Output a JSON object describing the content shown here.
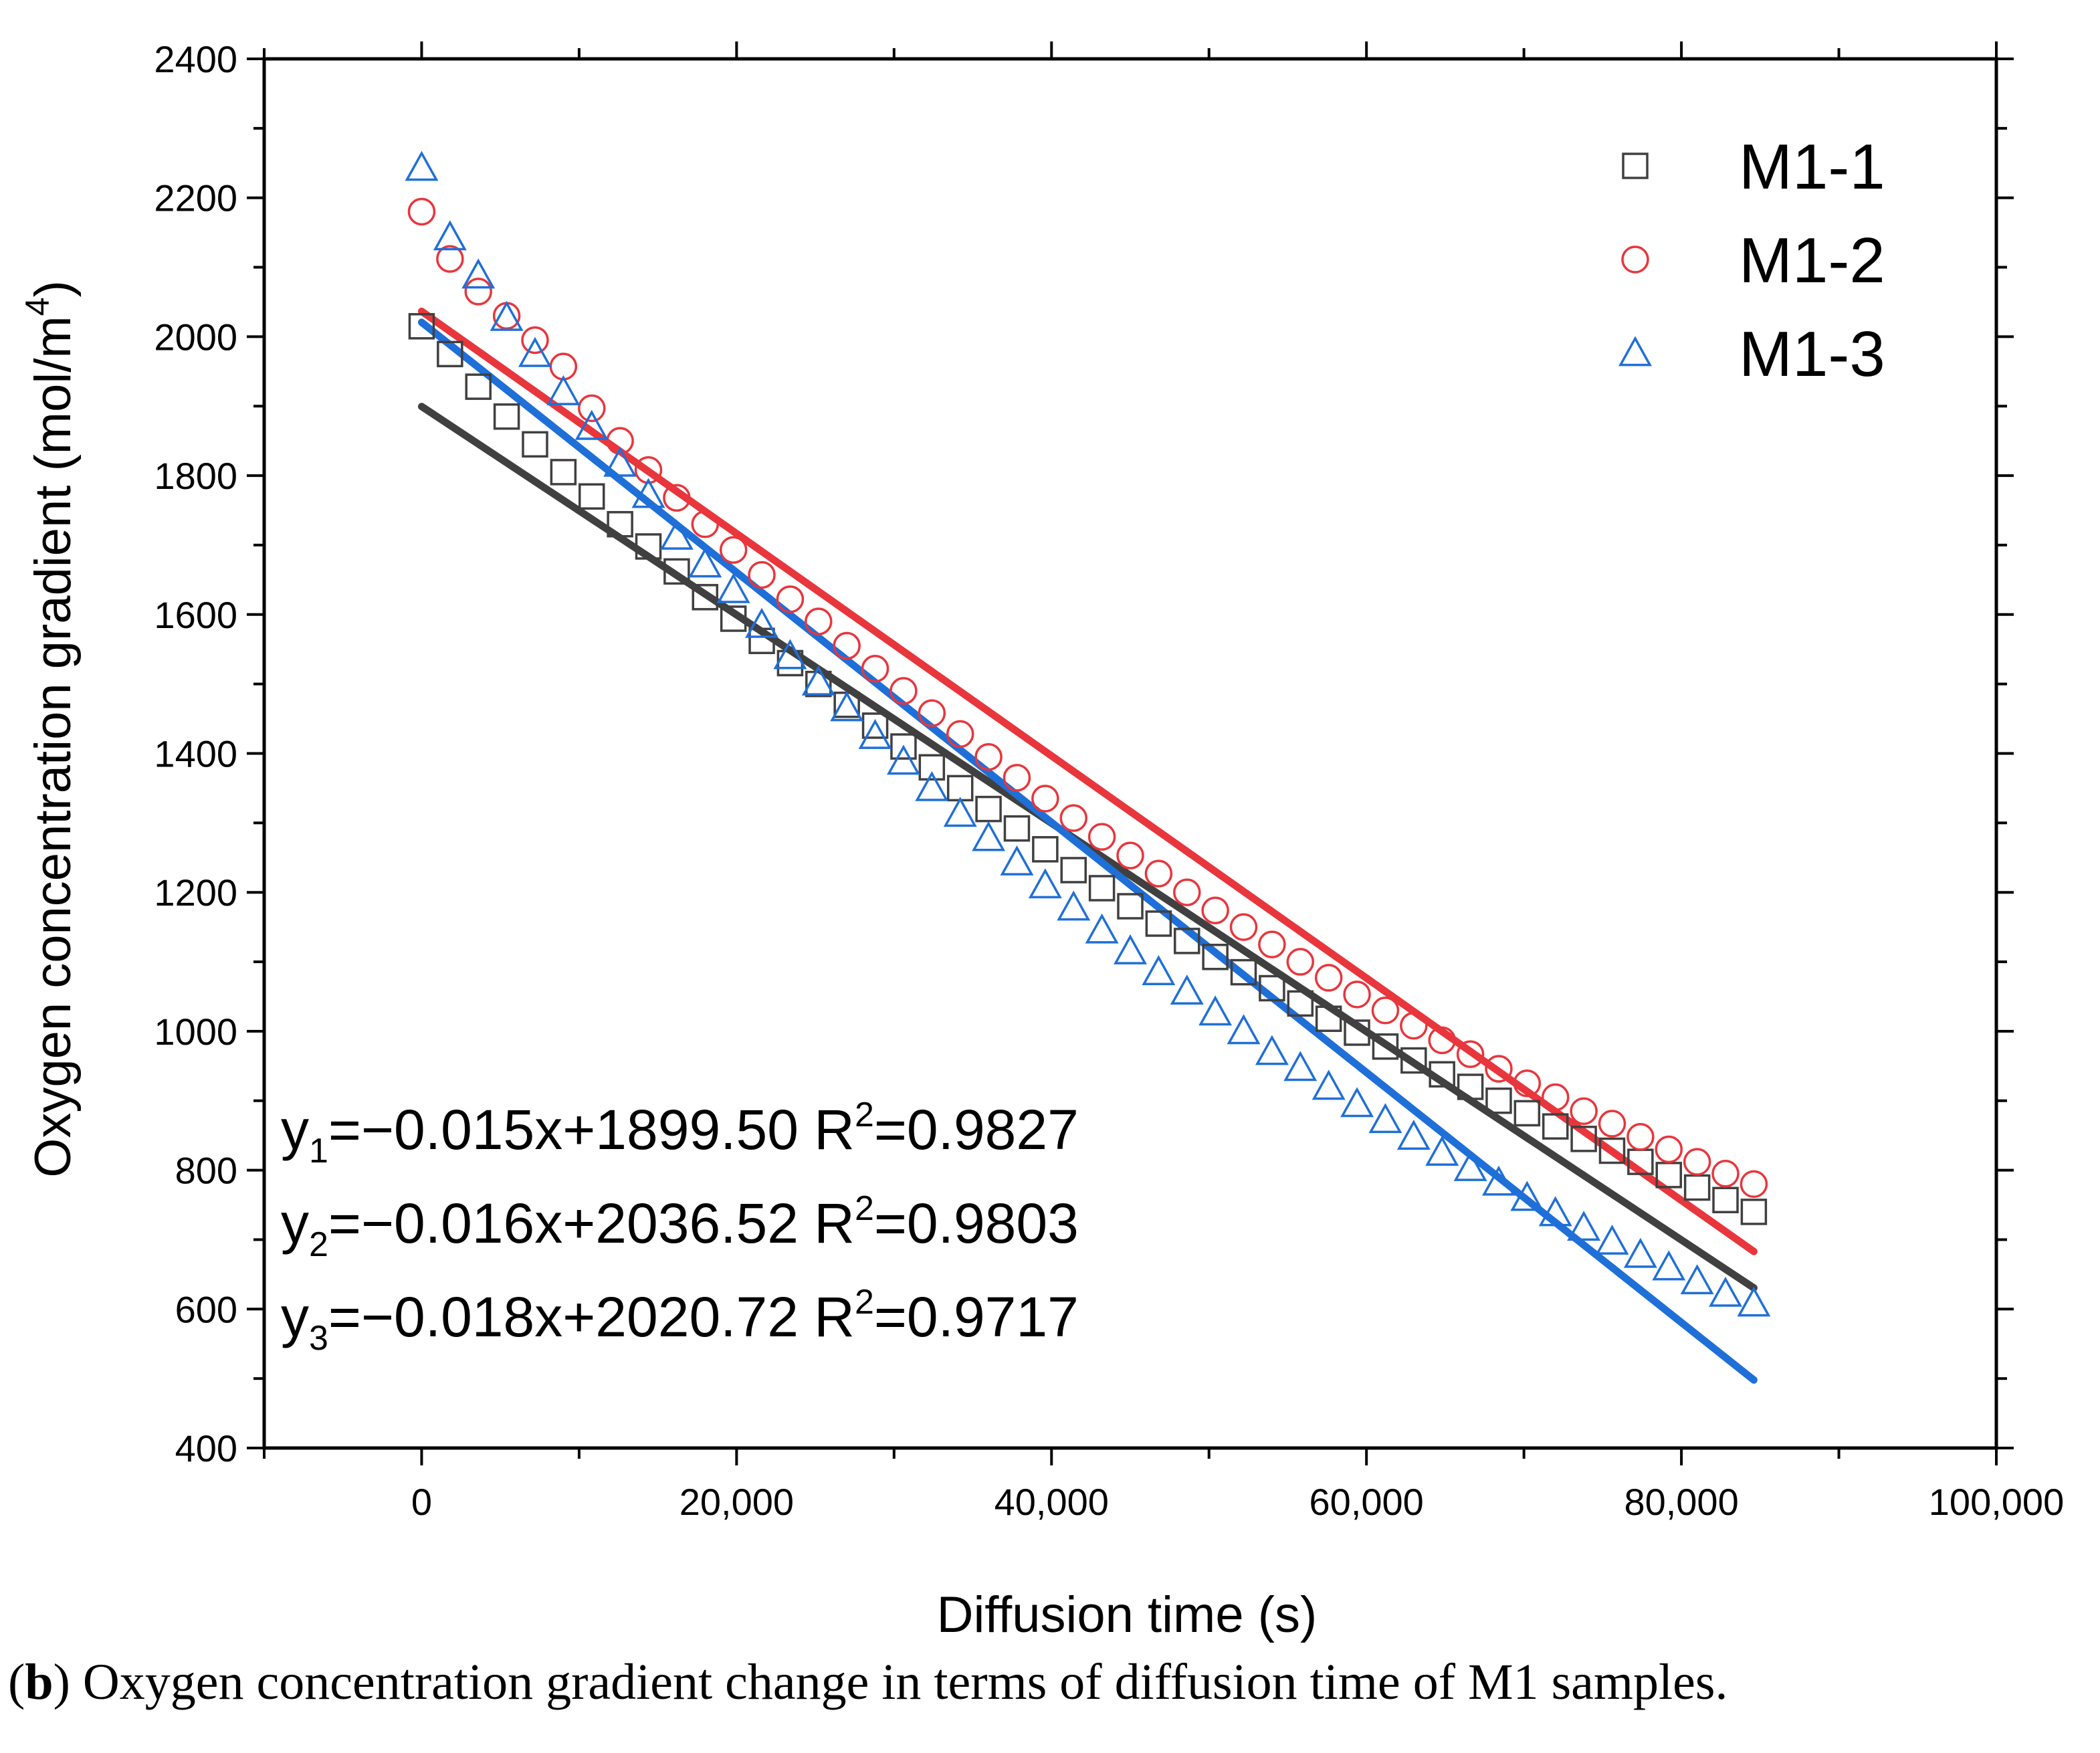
{
  "chart_data": {
    "type": "scatter",
    "xlabel": "Diffusion time (s)",
    "ylabel": "Oxygen concentration gradient (mol/m",
    "ylabel_sup": "4",
    "ylabel_close": ")",
    "xlim": [
      -10000,
      100000
    ],
    "ylim": [
      400,
      2400
    ],
    "x_ticks": [
      0,
      20000,
      40000,
      60000,
      80000,
      100000
    ],
    "x_tick_labels": [
      "0",
      "20,000",
      "40,000",
      "60,000",
      "80,000",
      "100,000"
    ],
    "y_ticks": [
      400,
      600,
      800,
      1000,
      1200,
      1400,
      1600,
      1800,
      2000,
      2200,
      2400
    ],
    "y_tick_labels": [
      "400",
      "600",
      "800",
      "1000",
      "1200",
      "1400",
      "1600",
      "1800",
      "2000",
      "2200",
      "2400"
    ],
    "legend_position": "top-right",
    "series": [
      {
        "name": "M1-1",
        "marker": "square",
        "color": "#404040",
        "fit_color": "#404040",
        "x": [
          0,
          1800,
          3600,
          5400,
          7200,
          9000,
          10800,
          12600,
          14400,
          16200,
          18000,
          19800,
          21600,
          23400,
          25200,
          27000,
          28800,
          30600,
          32400,
          34200,
          36000,
          37800,
          39600,
          41400,
          43200,
          45000,
          46800,
          48600,
          50400,
          52200,
          54000,
          55800,
          57600,
          59400,
          61200,
          63000,
          64800,
          66600,
          68400,
          70200,
          72000,
          73800,
          75600,
          77400,
          79200,
          81000,
          82800,
          84600
        ],
        "y": [
          2015,
          1975,
          1928,
          1885,
          1845,
          1805,
          1770,
          1730,
          1698,
          1662,
          1625,
          1594,
          1562,
          1530,
          1500,
          1470,
          1440,
          1410,
          1380,
          1350,
          1320,
          1292,
          1262,
          1232,
          1206,
          1180,
          1155,
          1130,
          1107,
          1085,
          1062,
          1040,
          1018,
          998,
          978,
          958,
          938,
          920,
          900,
          882,
          863,
          845,
          828,
          812,
          793,
          775,
          757,
          740
        ],
        "fit": {
          "slope": -0.015,
          "intercept": 1899.5,
          "x_range": [
            0,
            84600
          ]
        }
      },
      {
        "name": "M1-2",
        "marker": "circle",
        "color": "#e8363c",
        "fit_color": "#e8363c",
        "x": [
          0,
          1800,
          3600,
          5400,
          7200,
          9000,
          10800,
          12600,
          14400,
          16200,
          18000,
          19800,
          21600,
          23400,
          25200,
          27000,
          28800,
          30600,
          32400,
          34200,
          36000,
          37800,
          39600,
          41400,
          43200,
          45000,
          46800,
          48600,
          50400,
          52200,
          54000,
          55800,
          57600,
          59400,
          61200,
          63000,
          64800,
          66600,
          68400,
          70200,
          72000,
          73800,
          75600,
          77400,
          79200,
          81000,
          82800,
          84600
        ],
        "y": [
          2180,
          2112,
          2065,
          2030,
          1995,
          1957,
          1897,
          1850,
          1808,
          1768,
          1730,
          1693,
          1657,
          1622,
          1590,
          1555,
          1522,
          1490,
          1458,
          1428,
          1395,
          1365,
          1335,
          1307,
          1280,
          1253,
          1227,
          1200,
          1174,
          1150,
          1125,
          1100,
          1077,
          1053,
          1030,
          1008,
          987,
          967,
          946,
          925,
          905,
          885,
          867,
          848,
          830,
          812,
          795,
          780
        ],
        "fit": {
          "slope": -0.016,
          "intercept": 2036.52,
          "x_range": [
            0,
            84600
          ]
        }
      },
      {
        "name": "M1-3",
        "marker": "triangle",
        "color": "#1f6fd8",
        "fit_color": "#1f6fd8",
        "x": [
          0,
          1800,
          3600,
          5400,
          7200,
          9000,
          10800,
          12600,
          14400,
          16200,
          18000,
          19800,
          21600,
          23400,
          25200,
          27000,
          28800,
          30600,
          32400,
          34200,
          36000,
          37800,
          39600,
          41400,
          43200,
          45000,
          46800,
          48600,
          50400,
          52200,
          54000,
          55800,
          57600,
          59400,
          61200,
          63000,
          64800,
          66600,
          68400,
          70200,
          72000,
          73800,
          75600,
          77400,
          79200,
          81000,
          82800,
          84600
        ],
        "y": [
          2243,
          2143,
          2088,
          2027,
          1975,
          1920,
          1870,
          1817,
          1772,
          1712,
          1672,
          1635,
          1585,
          1540,
          1502,
          1465,
          1425,
          1388,
          1350,
          1313,
          1278,
          1243,
          1210,
          1178,
          1145,
          1115,
          1085,
          1057,
          1027,
          1000,
          970,
          947,
          920,
          895,
          872,
          848,
          825,
          803,
          782,
          760,
          738,
          717,
          697,
          678,
          660,
          640,
          622,
          608
        ],
        "fit": {
          "slope": -0.018,
          "intercept": 2020.72,
          "x_range": [
            0,
            84600
          ]
        }
      }
    ],
    "equations": [
      {
        "y_sub": "1",
        "text": "=−0.015x+1899.50 R",
        "r_sup": "2",
        "r_val": "=0.9827"
      },
      {
        "y_sub": "2",
        "text": "=−0.016x+2036.52 R",
        "r_sup": "2",
        "r_val": "=0.9803"
      },
      {
        "y_sub": "3",
        "text": "=−0.018x+2020.72 R",
        "r_sup": "2",
        "r_val": "=0.9717"
      }
    ]
  },
  "caption": {
    "label": "b",
    "text": " Oxygen concentration gradient change in terms of diffusion time of M1 samples."
  }
}
